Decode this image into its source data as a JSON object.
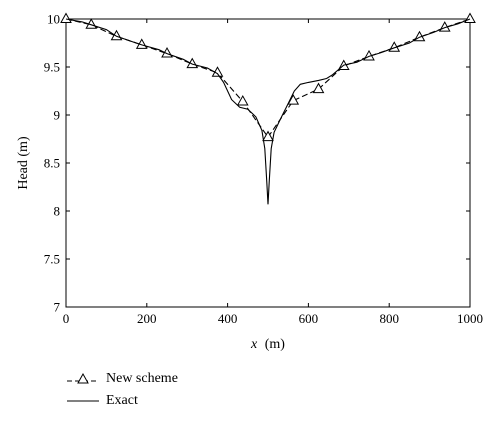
{
  "chart_data": {
    "type": "line",
    "xlabel_var": "x",
    "xlabel_unit": "(m)",
    "ylabel": "Head (m)",
    "xlim": [
      0,
      1000
    ],
    "ylim": [
      7,
      10
    ],
    "x_ticks": [
      0,
      200,
      400,
      600,
      800,
      1000
    ],
    "x_tick_labels": [
      "0",
      "200",
      "400",
      "600",
      "800",
      "1000"
    ],
    "y_ticks": [
      7,
      7.5,
      8,
      8.5,
      9,
      9.5,
      10
    ],
    "y_tick_labels": [
      "7",
      "7.5",
      "8",
      "8.5",
      "9",
      "9.5",
      "10"
    ],
    "grid": false,
    "legend_position": "below",
    "series": [
      {
        "name": "New scheme",
        "style": "dashed-triangle",
        "x": [
          0,
          62.5,
          125,
          187.5,
          250,
          312.5,
          375,
          437.5,
          500,
          562.5,
          625,
          687.5,
          750,
          812.5,
          875,
          937.5,
          1000
        ],
        "y": [
          10.0,
          9.94,
          9.82,
          9.73,
          9.64,
          9.53,
          9.44,
          9.14,
          8.77,
          9.15,
          9.27,
          9.51,
          9.61,
          9.7,
          9.81,
          9.91,
          10.0
        ]
      },
      {
        "name": "Exact",
        "style": "solid",
        "x": [
          0,
          40,
          62.5,
          100,
          125,
          160,
          187.5,
          230,
          250,
          290,
          312.5,
          350,
          375,
          390,
          410,
          430,
          450,
          470,
          485,
          492,
          497,
          500,
          503,
          508,
          515,
          530,
          550,
          565,
          580,
          600,
          625,
          645,
          660,
          687.5,
          720,
          750,
          780,
          812.5,
          850,
          875,
          910,
          937.5,
          970,
          1000
        ],
        "y": [
          10.0,
          9.97,
          9.94,
          9.89,
          9.82,
          9.77,
          9.73,
          9.68,
          9.64,
          9.58,
          9.53,
          9.49,
          9.43,
          9.34,
          9.16,
          9.08,
          9.06,
          8.98,
          8.84,
          8.65,
          8.3,
          8.07,
          8.3,
          8.65,
          8.82,
          8.95,
          9.12,
          9.25,
          9.32,
          9.34,
          9.36,
          9.38,
          9.42,
          9.52,
          9.55,
          9.61,
          9.65,
          9.7,
          9.75,
          9.81,
          9.86,
          9.91,
          9.95,
          10.0
        ]
      }
    ]
  }
}
